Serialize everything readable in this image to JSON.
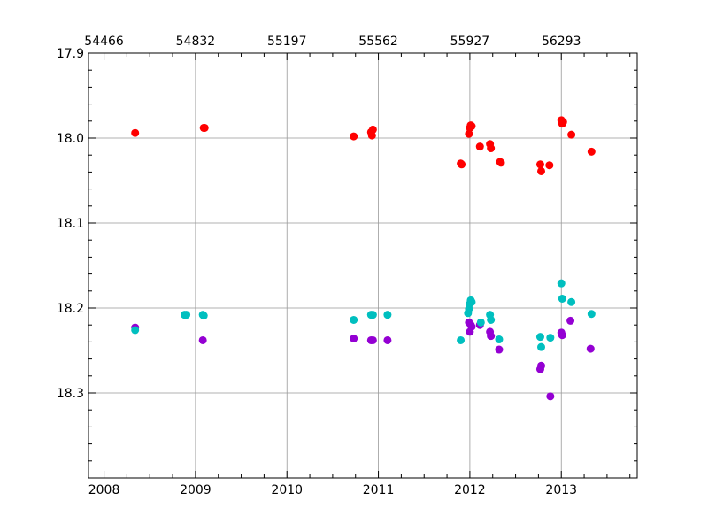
{
  "chart_data": {
    "type": "scatter",
    "title": "",
    "xlabel": "",
    "ylabel": "",
    "grid": true,
    "y_inverted": true,
    "xlim": [
      2007.83,
      2013.83
    ],
    "ylim": [
      18.4,
      17.9
    ],
    "x_ticks": [
      {
        "value": 2008,
        "label": "2008"
      },
      {
        "value": 2009,
        "label": "2009"
      },
      {
        "value": 2010,
        "label": "2010"
      },
      {
        "value": 2011,
        "label": "2011"
      },
      {
        "value": 2012,
        "label": "2012"
      },
      {
        "value": 2013,
        "label": "2013"
      }
    ],
    "top_x_ticks": [
      {
        "value": 2008.0,
        "label": "54466"
      },
      {
        "value": 2009.0,
        "label": "54832"
      },
      {
        "value": 2010.0,
        "label": "55197"
      },
      {
        "value": 2011.0,
        "label": "55562"
      },
      {
        "value": 2012.0,
        "label": "55927"
      },
      {
        "value": 2013.0,
        "label": "56293"
      }
    ],
    "y_ticks": [
      {
        "value": 17.9,
        "label": "17.9"
      },
      {
        "value": 18.0,
        "label": "18.0"
      },
      {
        "value": 18.1,
        "label": "18.1"
      },
      {
        "value": 18.2,
        "label": "18.2"
      },
      {
        "value": 18.3,
        "label": "18.3"
      }
    ],
    "series": [
      {
        "color": "#ff0000",
        "points": [
          [
            2008.34,
            17.994
          ],
          [
            2009.09,
            17.988
          ],
          [
            2009.1,
            17.988
          ],
          [
            2010.73,
            17.998
          ],
          [
            2010.92,
            17.993
          ],
          [
            2010.93,
            17.997
          ],
          [
            2010.94,
            17.99
          ],
          [
            2011.9,
            18.03
          ],
          [
            2011.91,
            18.031
          ],
          [
            2011.99,
            17.995
          ],
          [
            2012.0,
            17.988
          ],
          [
            2012.01,
            17.985
          ],
          [
            2012.02,
            17.986
          ],
          [
            2012.11,
            18.01
          ],
          [
            2012.22,
            18.007
          ],
          [
            2012.23,
            18.012
          ],
          [
            2012.33,
            18.028
          ],
          [
            2012.34,
            18.029
          ],
          [
            2012.77,
            18.031
          ],
          [
            2012.78,
            18.039
          ],
          [
            2012.87,
            18.032
          ],
          [
            2013.0,
            17.979
          ],
          [
            2013.01,
            17.983
          ],
          [
            2013.02,
            17.981
          ],
          [
            2013.11,
            17.996
          ],
          [
            2013.33,
            18.016
          ]
        ]
      },
      {
        "color": "#9400d3",
        "points": [
          [
            2008.34,
            18.223
          ],
          [
            2009.08,
            18.238
          ],
          [
            2010.73,
            18.236
          ],
          [
            2010.92,
            18.238
          ],
          [
            2010.94,
            18.238
          ],
          [
            2011.1,
            18.238
          ],
          [
            2011.99,
            18.217
          ],
          [
            2012.0,
            18.228
          ],
          [
            2012.01,
            18.22
          ],
          [
            2012.02,
            18.222
          ],
          [
            2012.11,
            18.22
          ],
          [
            2012.22,
            18.228
          ],
          [
            2012.23,
            18.233
          ],
          [
            2012.32,
            18.249
          ],
          [
            2012.77,
            18.272
          ],
          [
            2012.78,
            18.268
          ],
          [
            2012.88,
            18.304
          ],
          [
            2013.0,
            18.229
          ],
          [
            2013.01,
            18.232
          ],
          [
            2013.1,
            18.215
          ],
          [
            2013.32,
            18.248
          ]
        ]
      },
      {
        "color": "#00bfbf",
        "points": [
          [
            2008.34,
            18.226
          ],
          [
            2008.88,
            18.208
          ],
          [
            2008.9,
            18.208
          ],
          [
            2009.08,
            18.208
          ],
          [
            2009.09,
            18.209
          ],
          [
            2010.73,
            18.214
          ],
          [
            2010.92,
            18.208
          ],
          [
            2010.94,
            18.208
          ],
          [
            2011.1,
            18.208
          ],
          [
            2011.9,
            18.238
          ],
          [
            2011.98,
            18.206
          ],
          [
            2011.99,
            18.201
          ],
          [
            2012.0,
            18.195
          ],
          [
            2012.01,
            18.191
          ],
          [
            2012.02,
            18.193
          ],
          [
            2012.12,
            18.217
          ],
          [
            2012.22,
            18.208
          ],
          [
            2012.23,
            18.214
          ],
          [
            2012.32,
            18.237
          ],
          [
            2012.77,
            18.234
          ],
          [
            2012.78,
            18.246
          ],
          [
            2012.88,
            18.235
          ],
          [
            2013.0,
            18.171
          ],
          [
            2013.01,
            18.189
          ],
          [
            2013.11,
            18.193
          ],
          [
            2013.33,
            18.207
          ]
        ]
      }
    ]
  }
}
